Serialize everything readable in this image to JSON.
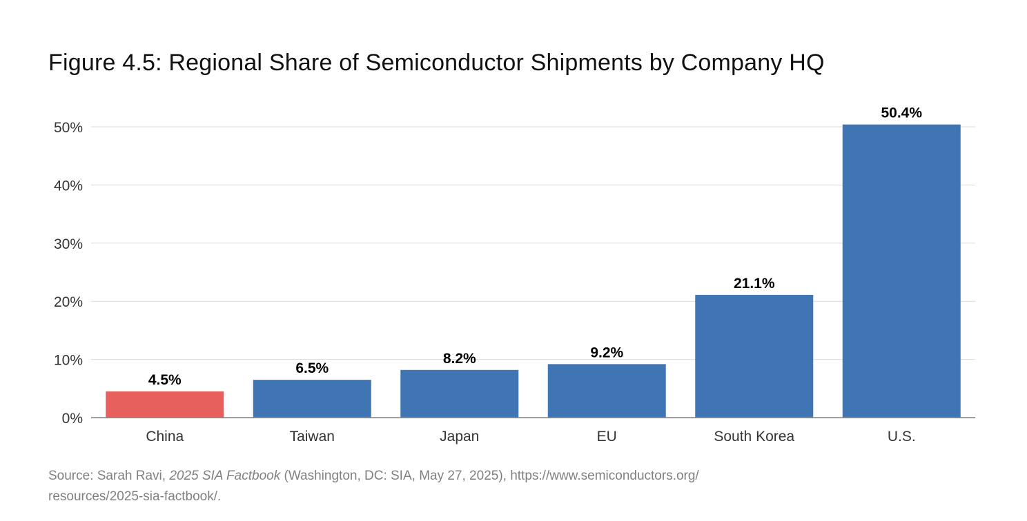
{
  "title": "Figure 4.5: Regional Share of Semiconductor Shipments by Company HQ",
  "source": {
    "prefix": "Source: Sarah Ravi, ",
    "book": "2025 SIA Factbook",
    "rest": " (Washington, DC: SIA, May 27, 2025), https://www.semiconductors.org/",
    "line2": "resources/2025-sia-factbook/."
  },
  "colors": {
    "highlight": "#E8605E",
    "bar": "#4075B3",
    "grid": "#D9D9D9",
    "axis": "#7F7F7F"
  },
  "chart_data": {
    "type": "bar",
    "categories": [
      "China",
      "Taiwan",
      "Japan",
      "EU",
      "South Korea",
      "U.S."
    ],
    "values": [
      4.5,
      6.5,
      8.2,
      9.2,
      21.1,
      50.4
    ],
    "data_labels": [
      "4.5%",
      "6.5%",
      "8.2%",
      "9.2%",
      "21.1%",
      "50.4%"
    ],
    "highlighted_category": "China",
    "title": "Figure 4.5: Regional Share of Semiconductor Shipments by Company HQ",
    "xlabel": "",
    "ylabel": "",
    "ylim": [
      0,
      50
    ],
    "yticks": [
      0,
      10,
      20,
      30,
      40,
      50
    ],
    "ytick_labels": [
      "0%",
      "10%",
      "20%",
      "30%",
      "40%",
      "50%"
    ],
    "grid": true,
    "legend": "none"
  }
}
